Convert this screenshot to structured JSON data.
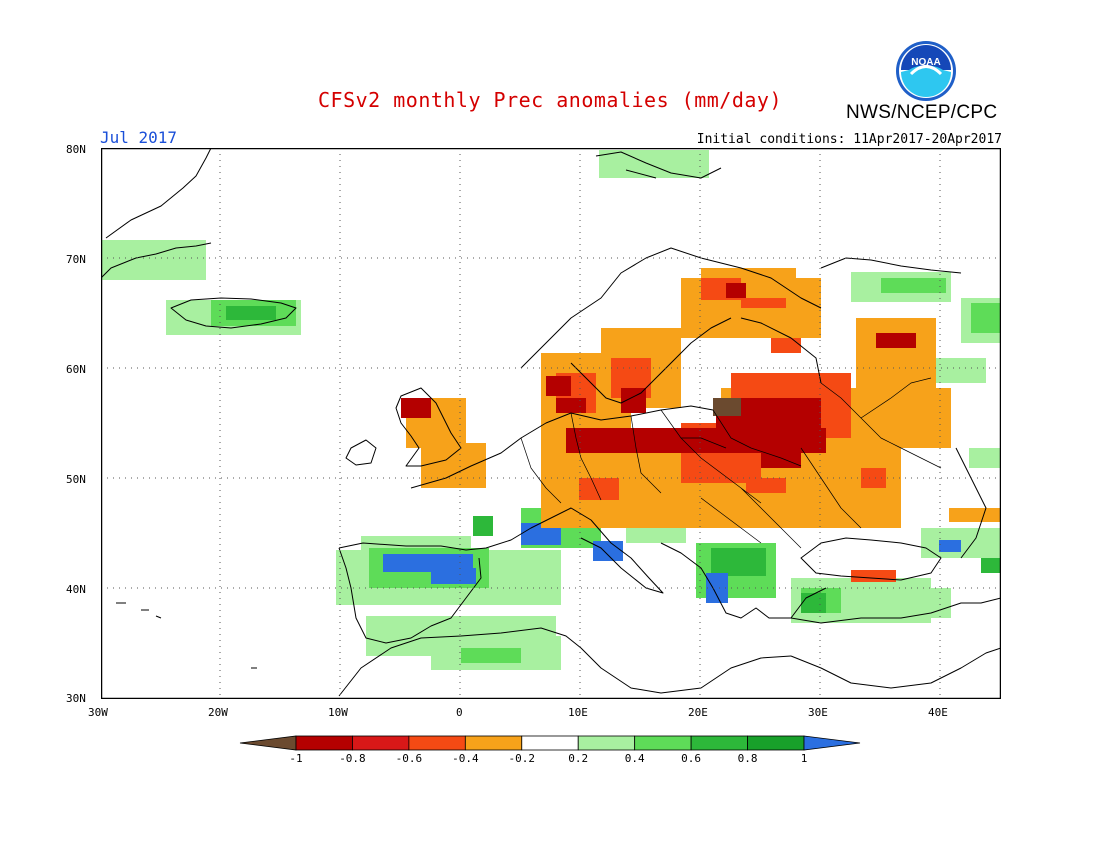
{
  "header": {
    "title": "CFSv2 monthly Prec anomalies (mm/day)",
    "org": "NWS/NCEP/CPC",
    "logo_text": "NOAA",
    "month": "Jul 2017",
    "initial_conditions": "Initial conditions: 11Apr2017-20Apr2017"
  },
  "axes": {
    "lat_labels": [
      "80N",
      "70N",
      "60N",
      "50N",
      "40N",
      "30N"
    ],
    "lon_labels": [
      "30W",
      "20W",
      "10W",
      "0",
      "10E",
      "20E",
      "30E",
      "40E"
    ]
  },
  "legend": {
    "tick_labels": [
      "-1",
      "-0.8",
      "-0.6",
      "-0.4",
      "-0.2",
      "0.2",
      "0.4",
      "0.6",
      "0.8",
      "1"
    ],
    "colors": [
      "#6b4a2f",
      "#b40000",
      "#d81818",
      "#f54a14",
      "#f7a21a",
      "#ffffff",
      "#a8f0a0",
      "#5edc58",
      "#2db83a",
      "#18a02a",
      "#2b6fe0"
    ]
  }
}
